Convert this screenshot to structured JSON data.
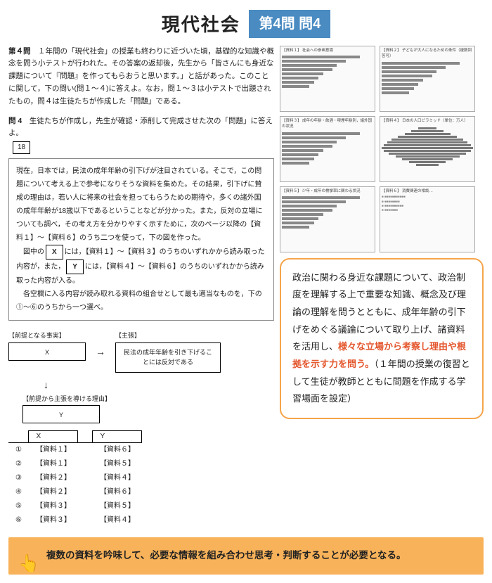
{
  "header": {
    "title": "現代社会",
    "badge": "第4問 問4"
  },
  "intro": {
    "label": "第４問",
    "text": "１年間の「現代社会」の授業も終わりに近づいた頃，基礎的な知識や概念を問う小テストが行われた。その答案の返却後，先生から「皆さんにも身近な課題について『問題』を作ってもらおうと思います。」と話があった。このことに関して，下の問い(問１～４)に答えよ。なお，問１～３は小テストで出題されたもの，問４は生徒たちが作成した「問題」である。"
  },
  "subq": {
    "label": "問 4",
    "text": "生徒たちが作成し，先生が確認・添削して完成させた次の「問題」に答えよ。",
    "boxnum": "18"
  },
  "essay": {
    "p1": "現在，日本では，民法の成年年齢の引下げが注目されている。そこで，この問題について考える上で参考になりそうな資料を集めた。その結果，引下げに賛成の理由は，若い人に将来の社会を担ってもらうための期待や，多くの諸外国の成年年齢が18歳以下であるということなどが分かった。また，反対の立場についても調べ，その考え方を分かりやすく示すために，次のページ以降の【資料１】～【資料６】のうち二つを使って，下の図を作った。",
    "p2a": "図中の",
    "blankX": "X",
    "p2b": "には，【資料１】～【資料３】のうちのいずれかから読み取った内容が，また，",
    "blankY": "Y",
    "p2c": "には，【資料４】～【資料６】のうちのいずれかから読み取った内容が入る。",
    "p3": "各空欄に入る内容が読み取れる資料の組合せとして最も適当なものを，下の①～⑥のうちから一つ選べ。"
  },
  "diagram": {
    "premise_label": "【前提となる事実】",
    "claim_label": "【主張】",
    "x": "X",
    "claim": "民法の成年年齢を引き下げることには反対である",
    "reason_label": "【前提から主張を導ける理由】",
    "y": "Y"
  },
  "choices": {
    "headX": "X",
    "headY": "Y",
    "rows": [
      {
        "n": "①",
        "x": "【資料１】",
        "y": "【資料６】"
      },
      {
        "n": "②",
        "x": "【資料１】",
        "y": "【資料５】"
      },
      {
        "n": "③",
        "x": "【資料２】",
        "y": "【資料４】"
      },
      {
        "n": "④",
        "x": "【資料２】",
        "y": "【資料６】"
      },
      {
        "n": "⑤",
        "x": "【資料３】",
        "y": "【資料５】"
      },
      {
        "n": "⑥",
        "x": "【資料３】",
        "y": "【資料４】"
      }
    ]
  },
  "thumbs": [
    {
      "t": "【資料１】 社会への参画意識",
      "type": "hbar"
    },
    {
      "t": "【資料２】 子どもが大人になるための条件（複数回答可）",
      "type": "hbar"
    },
    {
      "t": "【資料３】 成年の年齢・飲酒・喫煙年齢別，諸外国の状況",
      "type": "hbar"
    },
    {
      "t": "【資料４】 日本の人口ピラミッド（単位：万人）",
      "type": "pyramid"
    },
    {
      "t": "【資料５】 少年・成年の検挙率に関わる状況",
      "type": "hbar"
    },
    {
      "t": "【資料６】 消費関連の相談…",
      "type": "text"
    }
  ],
  "callout": {
    "t1": "政治に関わる身近な課題について、政治制度を理解する上で重要な知識、概念及び理論の理解を問うとともに、成年年齢の引下げをめぐる議論について取り上げ、諸資料を活用し、",
    "hl": "様々な立場から考察し理由や根拠を示す力を問う。",
    "t2": "（１年間の授業の復習として生徒が教師とともに問題を作成する学習場面を設定）"
  },
  "callout2": "複数の資料を吟味して、必要な情報を組み合わせ思考・判断することが必要となる。",
  "colors": {
    "badge": "#4a8bc2",
    "callout_border": "#f5a54a",
    "hl": "#e4572e",
    "callout2_bg": "#f8b25a"
  }
}
